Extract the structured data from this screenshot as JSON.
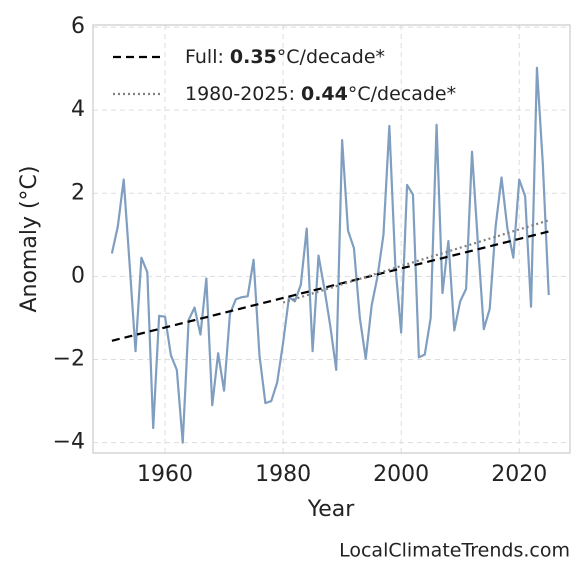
{
  "chart_data": {
    "type": "line",
    "xlabel": "Year",
    "ylabel": "Anomaly (°C)",
    "source": "LocalClimateTrends.com",
    "x": [
      1951,
      1952,
      1953,
      1954,
      1955,
      1956,
      1957,
      1958,
      1959,
      1960,
      1961,
      1962,
      1963,
      1964,
      1965,
      1966,
      1967,
      1968,
      1969,
      1970,
      1971,
      1972,
      1973,
      1974,
      1975,
      1976,
      1977,
      1978,
      1979,
      1980,
      1981,
      1982,
      1983,
      1984,
      1985,
      1986,
      1987,
      1988,
      1989,
      1990,
      1991,
      1992,
      1993,
      1994,
      1995,
      1996,
      1997,
      1998,
      1999,
      2000,
      2001,
      2002,
      2003,
      2004,
      2005,
      2006,
      2007,
      2008,
      2009,
      2010,
      2011,
      2012,
      2013,
      2014,
      2015,
      2016,
      2017,
      2018,
      2019,
      2020,
      2021,
      2022,
      2023,
      2024,
      2025
    ],
    "series": [
      {
        "color": "#7f9ec0",
        "values": [
          0.55,
          1.2,
          2.33,
          0.3,
          -1.8,
          0.45,
          0.1,
          -3.65,
          -0.95,
          -0.97,
          -1.9,
          -2.25,
          -4.0,
          -1.05,
          -0.75,
          -1.4,
          -0.05,
          -3.1,
          -1.85,
          -2.75,
          -0.9,
          -0.55,
          -0.5,
          -0.48,
          0.4,
          -1.9,
          -3.05,
          -3.0,
          -2.55,
          -1.6,
          -0.5,
          -0.6,
          -0.2,
          1.15,
          -1.8,
          0.5,
          -0.3,
          -1.2,
          -2.25,
          3.28,
          1.1,
          0.68,
          -1.0,
          -1.98,
          -0.7,
          0.0,
          1.0,
          3.62,
          0.3,
          -1.35,
          2.2,
          1.97,
          -1.95,
          -1.88,
          -1.0,
          3.65,
          -0.4,
          0.85,
          -1.3,
          -0.6,
          -0.3,
          3.0,
          0.8,
          -1.27,
          -0.78,
          1.2,
          2.38,
          1.15,
          0.45,
          2.33,
          1.93,
          -0.73,
          5.02,
          2.7,
          -0.45
        ]
      }
    ],
    "trends": [
      {
        "name": "Full:",
        "slope": 0.35,
        "unit": "°C/decade*",
        "color": "#000000",
        "dash": "dashed",
        "x": [
          1951,
          2025
        ],
        "values": [
          -1.55,
          1.08
        ]
      },
      {
        "name": "1980-2025:",
        "slope": 0.44,
        "unit": "°C/decade*",
        "color": "#808080",
        "dash": "dotted",
        "x": [
          1980,
          2025
        ],
        "values": [
          -0.63,
          1.35
        ]
      }
    ],
    "xlim": [
      1947.8,
      2028.6
    ],
    "ylim": [
      -4.25,
      6.05
    ],
    "xticks": [
      1960,
      1980,
      2000,
      2020
    ],
    "yticks": [
      {
        "value": -4,
        "label": "−4"
      },
      {
        "value": -2,
        "label": "−2"
      },
      0,
      2,
      4,
      6
    ],
    "grid": true
  }
}
